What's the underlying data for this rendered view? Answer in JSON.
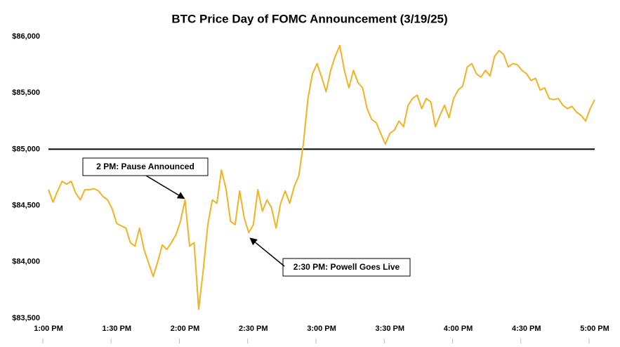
{
  "chart_data": {
    "type": "line",
    "title": "BTC Price Day of FOMC Announcement (3/19/25)",
    "categories": [
      "1:00 PM",
      null,
      null,
      null,
      null,
      null,
      null,
      null,
      null,
      null,
      null,
      null,
      null,
      null,
      null,
      "1:30 PM",
      null,
      null,
      null,
      null,
      null,
      null,
      null,
      null,
      null,
      null,
      null,
      null,
      null,
      null,
      "2:00 PM",
      null,
      null,
      null,
      null,
      null,
      null,
      null,
      null,
      null,
      null,
      null,
      null,
      null,
      null,
      "2:30 PM",
      null,
      null,
      null,
      null,
      null,
      null,
      null,
      null,
      null,
      null,
      null,
      null,
      null,
      null,
      "3:00 PM",
      null,
      null,
      null,
      null,
      null,
      null,
      null,
      null,
      null,
      null,
      null,
      null,
      null,
      null,
      "3:30 PM",
      null,
      null,
      null,
      null,
      null,
      null,
      null,
      null,
      null,
      null,
      null,
      null,
      null,
      null,
      "4:00 PM",
      null,
      null,
      null,
      null,
      null,
      null,
      null,
      null,
      null,
      null,
      null,
      null,
      null,
      null,
      "4:30 PM",
      null,
      null,
      null,
      null,
      null,
      null,
      null,
      null,
      null,
      null,
      null,
      null,
      null,
      null,
      "5:00 PM"
    ],
    "values": [
      84641,
      84530,
      84628,
      84715,
      84690,
      84715,
      84610,
      84550,
      84640,
      84640,
      84650,
      84630,
      84580,
      84550,
      84470,
      84340,
      84320,
      84300,
      84170,
      84140,
      84300,
      84110,
      83990,
      83870,
      84000,
      84150,
      84110,
      84170,
      84240,
      84360,
      84550,
      84140,
      84170,
      83580,
      83925,
      84330,
      84550,
      84520,
      84815,
      84650,
      84360,
      84330,
      84630,
      84390,
      84260,
      84330,
      84640,
      84450,
      84550,
      84480,
      84300,
      84520,
      84630,
      84520,
      84670,
      84765,
      85050,
      85450,
      85670,
      85760,
      85640,
      85510,
      85700,
      85825,
      85920,
      85700,
      85545,
      85700,
      85590,
      85545,
      85360,
      85265,
      85235,
      85140,
      85045,
      85140,
      85170,
      85250,
      85200,
      85390,
      85450,
      85480,
      85360,
      85450,
      85420,
      85200,
      85300,
      85390,
      85280,
      85450,
      85525,
      85560,
      85730,
      85760,
      85670,
      85640,
      85700,
      85650,
      85825,
      85875,
      85840,
      85730,
      85760,
      85750,
      85700,
      85670,
      85610,
      85630,
      85525,
      85545,
      85450,
      85440,
      85450,
      85390,
      85360,
      85380,
      85330,
      85300,
      85250,
      85360,
      85440
    ],
    "color": "#f0b323",
    "ylim": [
      83500,
      86000
    ],
    "yticks": [
      {
        "value": 83500,
        "label": "$83,500"
      },
      {
        "value": 84000,
        "label": "$84,000"
      },
      {
        "value": 84500,
        "label": "$84,500"
      },
      {
        "value": 85000,
        "label": "$85,000"
      },
      {
        "value": 85500,
        "label": "$85,500"
      },
      {
        "value": 86000,
        "label": "$86,000"
      }
    ],
    "reference_line": {
      "value": 85000,
      "color": "#000000"
    },
    "annotations": [
      {
        "text": "2 PM: Pause Announced"
      },
      {
        "text": "2:30 PM: Powell Goes Live"
      }
    ]
  }
}
